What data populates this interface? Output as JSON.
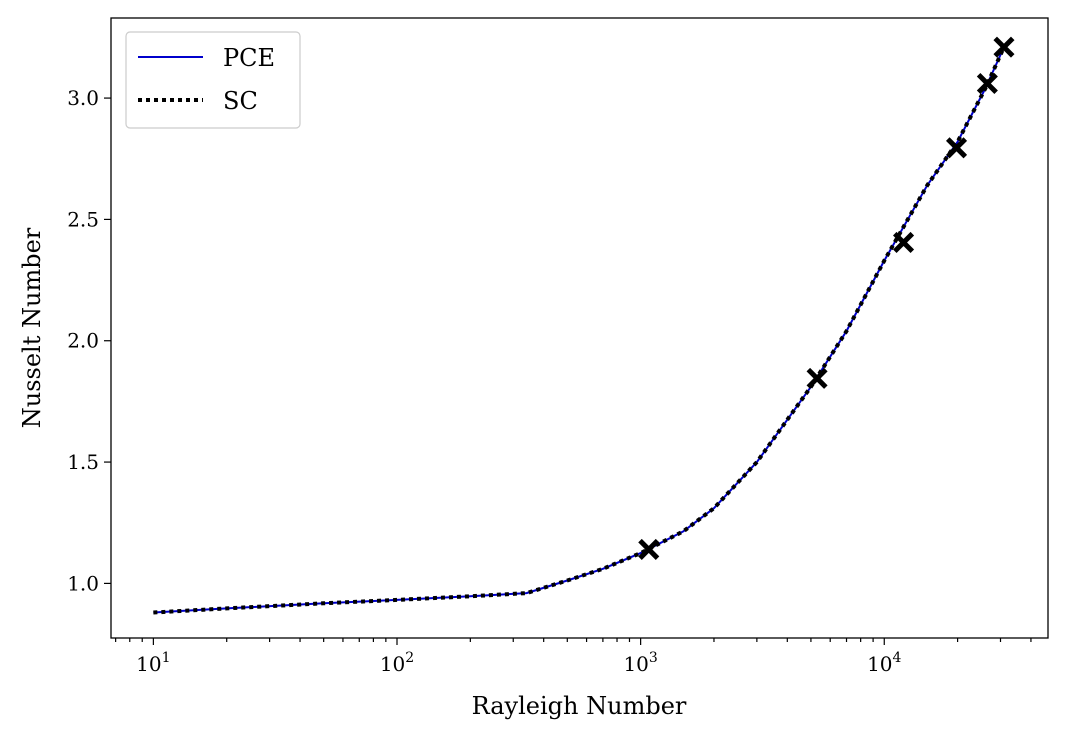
{
  "chart_data": {
    "type": "line",
    "xlabel": "Rayleigh Number",
    "ylabel": "Nusselt Number",
    "xscale": "log",
    "xlim": [
      6.7,
      47000
    ],
    "ylim": [
      0.775,
      3.33
    ],
    "grid": false,
    "legend_position": "top-left",
    "x_ticks": [
      {
        "value": 10,
        "base": "10",
        "exp": "1"
      },
      {
        "value": 100,
        "base": "10",
        "exp": "2"
      },
      {
        "value": 1000,
        "base": "10",
        "exp": "3"
      },
      {
        "value": 10000,
        "base": "10",
        "exp": "4"
      }
    ],
    "y_ticks": [
      {
        "value": 1.0,
        "label": "1.0"
      },
      {
        "value": 1.5,
        "label": "1.5"
      },
      {
        "value": 2.0,
        "label": "2.0"
      },
      {
        "value": 2.5,
        "label": "2.5"
      },
      {
        "value": 3.0,
        "label": "3.0"
      }
    ],
    "series": [
      {
        "name": "PCE",
        "style": "solid",
        "color": "#0000cc",
        "x": [
          10,
          20,
          50,
          100,
          200,
          340,
          500,
          700,
          1000,
          1500,
          2000,
          3000,
          5000,
          7000,
          10000,
          15000,
          20000,
          26000,
          31000
        ],
        "y": [
          0.88,
          0.897,
          0.918,
          0.932,
          0.947,
          0.96,
          1.012,
          1.06,
          1.125,
          1.215,
          1.31,
          1.5,
          1.81,
          2.04,
          2.33,
          2.64,
          2.82,
          3.04,
          3.21
        ]
      },
      {
        "name": "SC",
        "style": "dotted",
        "color": "#000000",
        "x": [
          10,
          20,
          50,
          100,
          200,
          340,
          500,
          700,
          1000,
          1500,
          2000,
          3000,
          5000,
          7000,
          10000,
          15000,
          20000,
          26000,
          31000
        ],
        "y": [
          0.88,
          0.897,
          0.918,
          0.932,
          0.947,
          0.96,
          1.012,
          1.06,
          1.125,
          1.215,
          1.31,
          1.5,
          1.81,
          2.04,
          2.33,
          2.64,
          2.82,
          3.04,
          3.21
        ]
      }
    ],
    "markers": {
      "symbol": "X",
      "color": "#000000",
      "x": [
        1080,
        5300,
        12000,
        19800,
        26500,
        31000
      ],
      "y": [
        1.14,
        1.845,
        2.405,
        2.795,
        3.06,
        3.21
      ]
    }
  }
}
